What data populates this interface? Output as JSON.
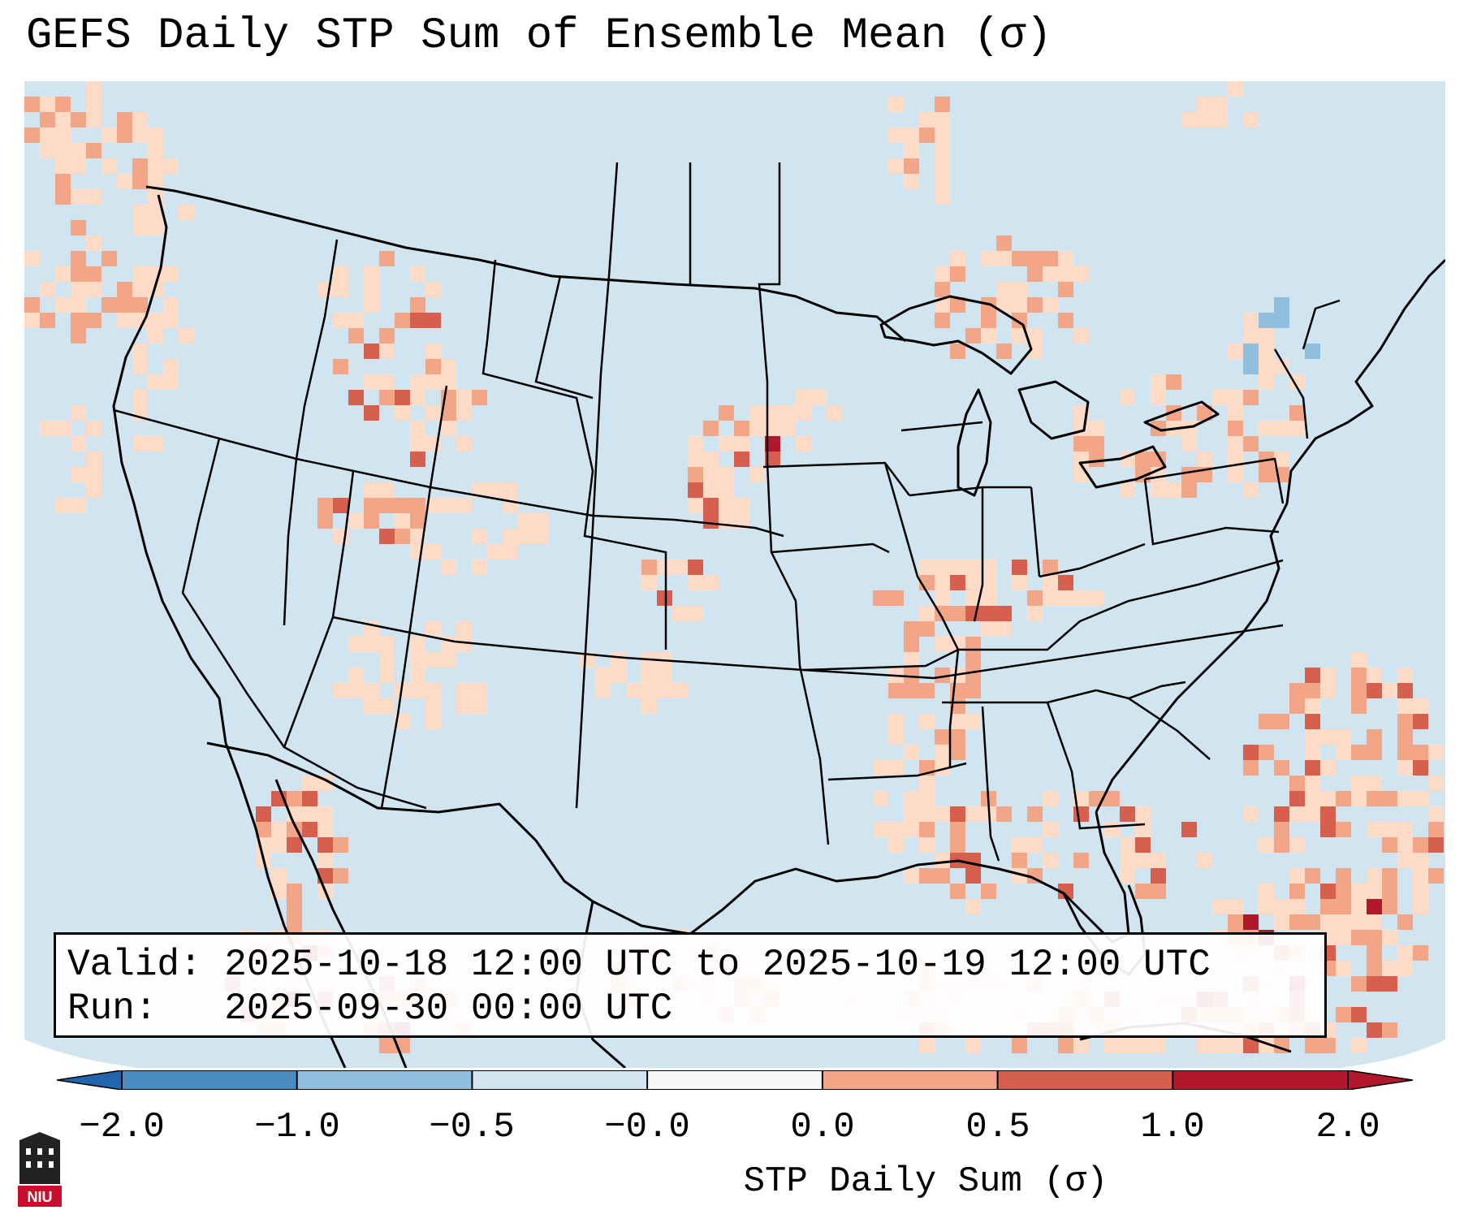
{
  "title": "GEFS Daily STP Sum of Ensemble Mean (σ)",
  "info": {
    "valid_line": "Valid: 2025-10-18 12:00 UTC to 2025-10-19 12:00 UTC",
    "run_line": "Run:   2025-09-30 00:00 UTC"
  },
  "colorbar": {
    "label": "STP Daily Sum (σ)",
    "tick_labels": [
      "−2.0",
      "−1.0",
      "−0.5",
      "−0.0",
      "0.0",
      "0.5",
      "1.0",
      "2.0"
    ],
    "bin_colors": [
      "#4a8bc0",
      "#8fbfdc",
      "#d1e5f0",
      "#f7f7f7",
      "#fddbc7",
      "#f2a587",
      "#d6604d",
      "#b2182b"
    ],
    "extend_low_color": "#2166ac",
    "extend_high_color": "#b2182b"
  },
  "map": {
    "background_color": "#d1e5f0",
    "coastline_color": "#000000"
  },
  "logo": {
    "text": "NIU"
  }
}
